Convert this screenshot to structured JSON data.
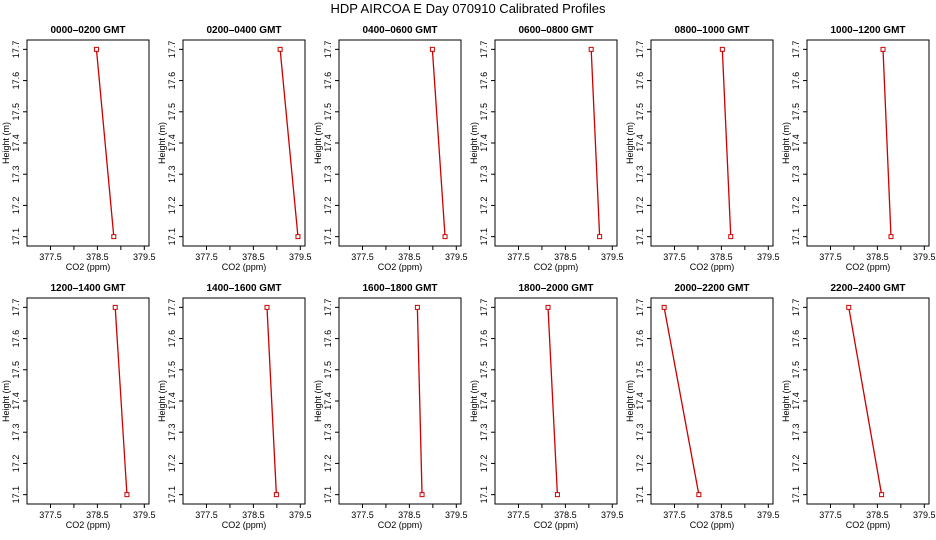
{
  "figure": {
    "title": "HDP  AIRCOA E  Day 070910  Calibrated Profiles",
    "line_color": "#cc0000"
  },
  "chart_data": [
    {
      "type": "line",
      "title": "0000–0200 GMT",
      "xlabel": "CO2 (ppm)",
      "ylabel": "Height (m)",
      "xlim": [
        377.0,
        379.6
      ],
      "ylim": [
        17.07,
        17.73
      ],
      "xticks": [
        "377.5",
        "378.5",
        "379.5"
      ],
      "yticks": [
        "17.1",
        "17.2",
        "17.3",
        "17.4",
        "17.5",
        "17.6",
        "17.7"
      ],
      "points": [
        {
          "x": 378.48,
          "y": 17.7
        },
        {
          "x": 378.85,
          "y": 17.1
        }
      ]
    },
    {
      "type": "line",
      "title": "0200–0400 GMT",
      "xlabel": "CO2 (ppm)",
      "ylabel": "Height (m)",
      "xlim": [
        377.0,
        379.6
      ],
      "ylim": [
        17.07,
        17.73
      ],
      "xticks": [
        "377.5",
        "378.5",
        "379.5"
      ],
      "yticks": [
        "17.1",
        "17.2",
        "17.3",
        "17.4",
        "17.5",
        "17.6",
        "17.7"
      ],
      "points": [
        {
          "x": 379.07,
          "y": 17.7
        },
        {
          "x": 379.45,
          "y": 17.1
        }
      ]
    },
    {
      "type": "line",
      "title": "0400–0600 GMT",
      "xlabel": "CO2 (ppm)",
      "ylabel": "Height (m)",
      "xlim": [
        377.0,
        379.6
      ],
      "ylim": [
        17.07,
        17.73
      ],
      "xticks": [
        "377.5",
        "378.5",
        "379.5"
      ],
      "yticks": [
        "17.1",
        "17.2",
        "17.3",
        "17.4",
        "17.5",
        "17.6",
        "17.7"
      ],
      "points": [
        {
          "x": 378.99,
          "y": 17.7
        },
        {
          "x": 379.26,
          "y": 17.1
        }
      ]
    },
    {
      "type": "line",
      "title": "0600–0800 GMT",
      "xlabel": "CO2 (ppm)",
      "ylabel": "Height (m)",
      "xlim": [
        377.0,
        379.6
      ],
      "ylim": [
        17.07,
        17.73
      ],
      "xticks": [
        "377.5",
        "378.5",
        "379.5"
      ],
      "yticks": [
        "17.1",
        "17.2",
        "17.3",
        "17.4",
        "17.5",
        "17.6",
        "17.7"
      ],
      "points": [
        {
          "x": 379.05,
          "y": 17.7
        },
        {
          "x": 379.23,
          "y": 17.1
        }
      ]
    },
    {
      "type": "line",
      "title": "0800–1000 GMT",
      "xlabel": "CO2 (ppm)",
      "ylabel": "Height (m)",
      "xlim": [
        377.0,
        379.6
      ],
      "ylim": [
        17.07,
        17.73
      ],
      "xticks": [
        "377.5",
        "378.5",
        "379.5"
      ],
      "yticks": [
        "17.1",
        "17.2",
        "17.3",
        "17.4",
        "17.5",
        "17.6",
        "17.7"
      ],
      "points": [
        {
          "x": 378.52,
          "y": 17.7
        },
        {
          "x": 378.7,
          "y": 17.1
        }
      ]
    },
    {
      "type": "line",
      "title": "1000–1200 GMT",
      "xlabel": "CO2 (ppm)",
      "ylabel": "Height (m)",
      "xlim": [
        377.0,
        379.6
      ],
      "ylim": [
        17.07,
        17.73
      ],
      "xticks": [
        "377.5",
        "378.5",
        "379.5"
      ],
      "yticks": [
        "17.1",
        "17.2",
        "17.3",
        "17.4",
        "17.5",
        "17.6",
        "17.7"
      ],
      "points": [
        {
          "x": 378.62,
          "y": 17.7
        },
        {
          "x": 378.79,
          "y": 17.1
        }
      ]
    },
    {
      "type": "line",
      "title": "1200–1400 GMT",
      "xlabel": "CO2 (ppm)",
      "ylabel": "Height (m)",
      "xlim": [
        377.0,
        379.6
      ],
      "ylim": [
        17.07,
        17.73
      ],
      "xticks": [
        "377.5",
        "378.5",
        "379.5"
      ],
      "yticks": [
        "17.1",
        "17.2",
        "17.3",
        "17.4",
        "17.5",
        "17.6",
        "17.7"
      ],
      "points": [
        {
          "x": 378.88,
          "y": 17.7
        },
        {
          "x": 379.13,
          "y": 17.1
        }
      ]
    },
    {
      "type": "line",
      "title": "1400–1600 GMT",
      "xlabel": "CO2 (ppm)",
      "ylabel": "Height (m)",
      "xlim": [
        377.0,
        379.6
      ],
      "ylim": [
        17.07,
        17.73
      ],
      "xticks": [
        "377.5",
        "378.5",
        "379.5"
      ],
      "yticks": [
        "17.1",
        "17.2",
        "17.3",
        "17.4",
        "17.5",
        "17.6",
        "17.7"
      ],
      "points": [
        {
          "x": 378.79,
          "y": 17.7
        },
        {
          "x": 378.99,
          "y": 17.1
        }
      ]
    },
    {
      "type": "line",
      "title": "1600–1800 GMT",
      "xlabel": "CO2 (ppm)",
      "ylabel": "Height (m)",
      "xlim": [
        377.0,
        379.6
      ],
      "ylim": [
        17.07,
        17.73
      ],
      "xticks": [
        "377.5",
        "378.5",
        "379.5"
      ],
      "yticks": [
        "17.1",
        "17.2",
        "17.3",
        "17.4",
        "17.5",
        "17.6",
        "17.7"
      ],
      "points": [
        {
          "x": 378.67,
          "y": 17.7
        },
        {
          "x": 378.77,
          "y": 17.1
        }
      ]
    },
    {
      "type": "line",
      "title": "1800–2000 GMT",
      "xlabel": "CO2 (ppm)",
      "ylabel": "Height (m)",
      "xlim": [
        377.0,
        379.6
      ],
      "ylim": [
        17.07,
        17.73
      ],
      "xticks": [
        "377.5",
        "378.5",
        "379.5"
      ],
      "yticks": [
        "17.1",
        "17.2",
        "17.3",
        "17.4",
        "17.5",
        "17.6",
        "17.7"
      ],
      "points": [
        {
          "x": 378.13,
          "y": 17.7
        },
        {
          "x": 378.33,
          "y": 17.1
        }
      ]
    },
    {
      "type": "line",
      "title": "2000–2200 GMT",
      "xlabel": "CO2 (ppm)",
      "ylabel": "Height (m)",
      "xlim": [
        377.0,
        379.6
      ],
      "ylim": [
        17.07,
        17.73
      ],
      "xticks": [
        "377.5",
        "378.5",
        "379.5"
      ],
      "yticks": [
        "17.1",
        "17.2",
        "17.3",
        "17.4",
        "17.5",
        "17.6",
        "17.7"
      ],
      "points": [
        {
          "x": 377.28,
          "y": 17.7
        },
        {
          "x": 378.02,
          "y": 17.1
        }
      ]
    },
    {
      "type": "line",
      "title": "2200–2400 GMT",
      "xlabel": "CO2 (ppm)",
      "ylabel": "Height (m)",
      "xlim": [
        377.0,
        379.6
      ],
      "ylim": [
        17.07,
        17.73
      ],
      "xticks": [
        "377.5",
        "378.5",
        "379.5"
      ],
      "yticks": [
        "17.1",
        "17.2",
        "17.3",
        "17.4",
        "17.5",
        "17.6",
        "17.7"
      ],
      "points": [
        {
          "x": 377.89,
          "y": 17.7
        },
        {
          "x": 378.59,
          "y": 17.1
        }
      ]
    }
  ]
}
